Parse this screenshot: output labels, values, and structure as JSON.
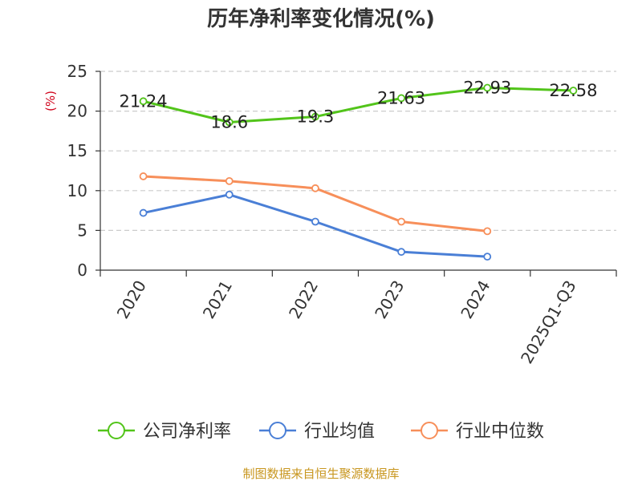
{
  "chart_data": {
    "type": "line",
    "title": "历年净利率变化情况(%)",
    "ylabel": "(%)",
    "xlabel": "",
    "categories": [
      "2020",
      "2021",
      "2022",
      "2023",
      "2024",
      "2025Q1-Q3"
    ],
    "ylim": [
      0,
      25
    ],
    "yticks": [
      0,
      5,
      10,
      15,
      20,
      25
    ],
    "grid": true,
    "legend_position": "bottom",
    "series": [
      {
        "name": "公司净利率",
        "color": "#52c41a",
        "values": [
          21.24,
          18.6,
          19.3,
          21.63,
          22.93,
          22.58
        ],
        "labels": [
          "21.24",
          "18.6",
          "19.3",
          "21.63",
          "22.93",
          "22.58"
        ]
      },
      {
        "name": "行业均值",
        "color": "#4a7fd6",
        "values": [
          7.2,
          9.5,
          6.1,
          2.3,
          1.7,
          null
        ]
      },
      {
        "name": "行业中位数",
        "color": "#f78f5a",
        "values": [
          11.8,
          11.2,
          10.3,
          6.1,
          4.9,
          null
        ]
      }
    ],
    "source": "制图数据来自恒生聚源数据库",
    "source_color": "#c8961e",
    "ylabel_color": "#d0021b"
  }
}
